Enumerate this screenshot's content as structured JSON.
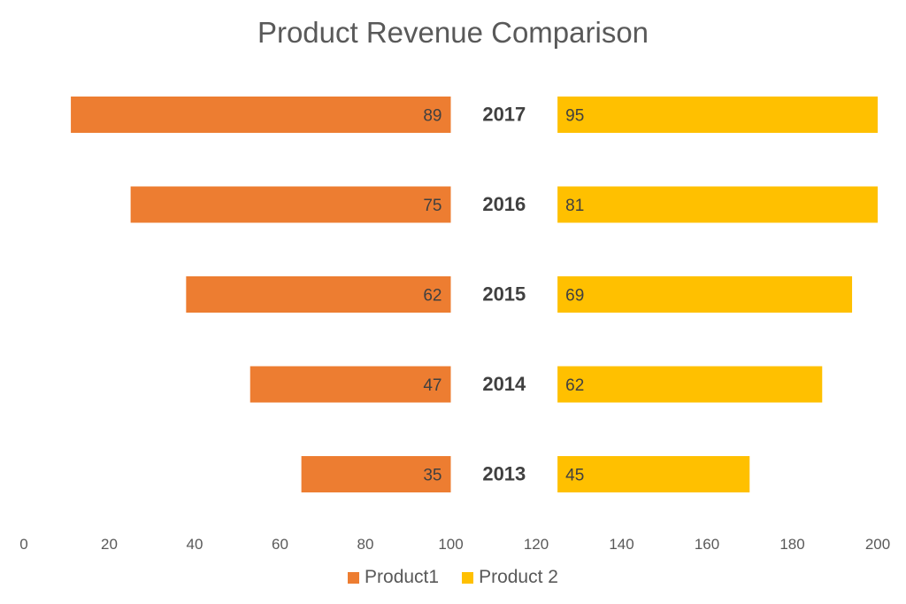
{
  "chart_data": {
    "type": "bar",
    "orientation": "horizontal",
    "title": "Product Revenue Comparison",
    "categories": [
      "2017",
      "2016",
      "2015",
      "2014",
      "2013"
    ],
    "series": [
      {
        "name": "Product1",
        "values": [
          89,
          75,
          62,
          47,
          35
        ],
        "color": "#ED7D31",
        "direction": "leftward from 100"
      },
      {
        "name": "Product 2",
        "values": [
          95,
          81,
          69,
          62,
          45
        ],
        "color": "#FFC000",
        "direction": "rightward from 125"
      }
    ],
    "xlim": [
      0,
      200
    ],
    "x_ticks": [
      0,
      20,
      40,
      60,
      80,
      100,
      120,
      140,
      160,
      180,
      200
    ],
    "grid": false,
    "legend": "bottom-center",
    "data_labels": true
  }
}
